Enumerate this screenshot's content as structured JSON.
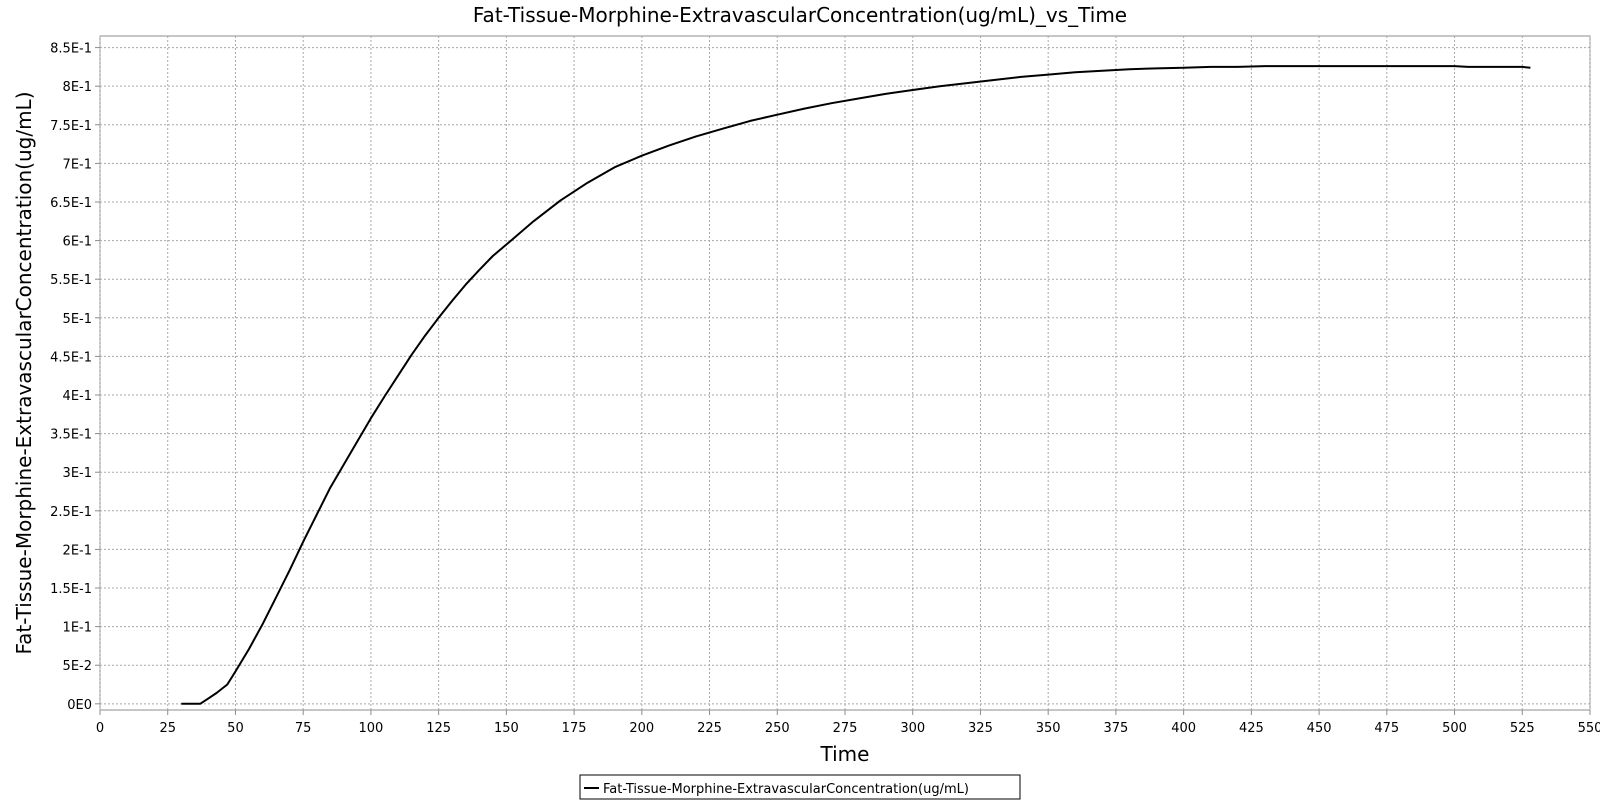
{
  "chart_data": {
    "type": "line",
    "title": "Fat-Tissue-Morphine-ExtravascularConcentration(ug/mL)_vs_Time",
    "xlabel": "Time",
    "ylabel": "Fat-Tissue-Morphine-ExtravascularConcentration(ug/mL)",
    "xlim": [
      0,
      550
    ],
    "ylim": [
      -0.008,
      0.865
    ],
    "grid": true,
    "legend_position": "bottom-center",
    "x_ticks": [
      {
        "value": 0,
        "label": "0"
      },
      {
        "value": 25,
        "label": "25"
      },
      {
        "value": 50,
        "label": "50"
      },
      {
        "value": 75,
        "label": "75"
      },
      {
        "value": 100,
        "label": "100"
      },
      {
        "value": 125,
        "label": "125"
      },
      {
        "value": 150,
        "label": "150"
      },
      {
        "value": 175,
        "label": "175"
      },
      {
        "value": 200,
        "label": "200"
      },
      {
        "value": 225,
        "label": "225"
      },
      {
        "value": 250,
        "label": "250"
      },
      {
        "value": 275,
        "label": "275"
      },
      {
        "value": 300,
        "label": "300"
      },
      {
        "value": 325,
        "label": "325"
      },
      {
        "value": 350,
        "label": "350"
      },
      {
        "value": 375,
        "label": "375"
      },
      {
        "value": 400,
        "label": "400"
      },
      {
        "value": 425,
        "label": "425"
      },
      {
        "value": 450,
        "label": "450"
      },
      {
        "value": 475,
        "label": "475"
      },
      {
        "value": 500,
        "label": "500"
      },
      {
        "value": 525,
        "label": "525"
      },
      {
        "value": 550,
        "label": "550"
      }
    ],
    "y_ticks": [
      {
        "value": 0,
        "label": "0E0"
      },
      {
        "value": 0.05,
        "label": "5E-2"
      },
      {
        "value": 0.1,
        "label": "1E-1"
      },
      {
        "value": 0.15,
        "label": "1.5E-1"
      },
      {
        "value": 0.2,
        "label": "2E-1"
      },
      {
        "value": 0.25,
        "label": "2.5E-1"
      },
      {
        "value": 0.3,
        "label": "3E-1"
      },
      {
        "value": 0.35,
        "label": "3.5E-1"
      },
      {
        "value": 0.4,
        "label": "4E-1"
      },
      {
        "value": 0.45,
        "label": "4.5E-1"
      },
      {
        "value": 0.5,
        "label": "5E-1"
      },
      {
        "value": 0.55,
        "label": "5.5E-1"
      },
      {
        "value": 0.6,
        "label": "6E-1"
      },
      {
        "value": 0.65,
        "label": "6.5E-1"
      },
      {
        "value": 0.7,
        "label": "7E-1"
      },
      {
        "value": 0.75,
        "label": "7.5E-1"
      },
      {
        "value": 0.8,
        "label": "8E-1"
      },
      {
        "value": 0.85,
        "label": "8.5E-1"
      }
    ],
    "series": [
      {
        "name": "Fat-Tissue-Morphine-ExtravascularConcentration(ug/mL)",
        "color": "#000000",
        "x": [
          30,
          37,
          40,
          43,
          47,
          50,
          55,
          60,
          65,
          70,
          75,
          80,
          85,
          90,
          95,
          100,
          105,
          110,
          115,
          120,
          125,
          130,
          135,
          140,
          145,
          150,
          160,
          170,
          180,
          190,
          200,
          210,
          220,
          230,
          240,
          250,
          260,
          270,
          280,
          290,
          300,
          310,
          320,
          330,
          340,
          350,
          360,
          370,
          380,
          390,
          400,
          410,
          420,
          430,
          440,
          450,
          460,
          470,
          480,
          490,
          500,
          505,
          515,
          525,
          528
        ],
        "y": [
          0.0,
          0.0,
          0.007,
          0.014,
          0.025,
          0.042,
          0.071,
          0.103,
          0.138,
          0.173,
          0.21,
          0.245,
          0.28,
          0.31,
          0.34,
          0.37,
          0.398,
          0.425,
          0.452,
          0.477,
          0.5,
          0.522,
          0.543,
          0.562,
          0.58,
          0.595,
          0.625,
          0.652,
          0.675,
          0.695,
          0.71,
          0.723,
          0.735,
          0.745,
          0.755,
          0.763,
          0.771,
          0.778,
          0.784,
          0.79,
          0.795,
          0.8,
          0.804,
          0.808,
          0.812,
          0.815,
          0.818,
          0.82,
          0.822,
          0.823,
          0.824,
          0.825,
          0.825,
          0.826,
          0.826,
          0.826,
          0.826,
          0.826,
          0.826,
          0.826,
          0.826,
          0.825,
          0.825,
          0.825,
          0.824
        ]
      }
    ]
  }
}
